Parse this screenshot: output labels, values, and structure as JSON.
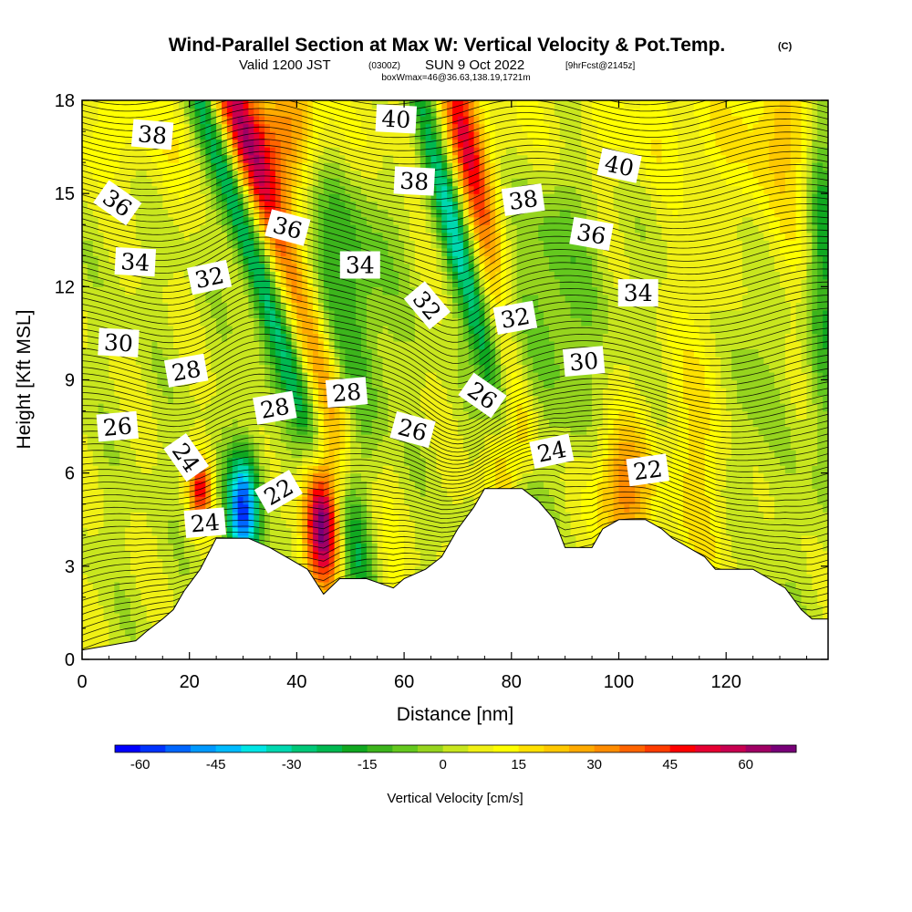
{
  "title": {
    "main": "Wind-Parallel Section at Max W: Vertical Velocity & Pot.Temp.",
    "units": "(C)",
    "valid_prefix": "Valid 1200 JST",
    "valid_utc": "(0300Z)",
    "valid_date": "SUN 9 Oct 2022",
    "forecast": "[9hrFcst@2145z]",
    "box_info": "boxWmax=46@36.63,138.19,1721m"
  },
  "chart_data": {
    "type": "heatmap",
    "xlabel": "Distance [nm]",
    "ylabel": "Height [Kft MSL]",
    "xlim": [
      0,
      139
    ],
    "ylim": [
      0,
      18
    ],
    "x_ticks": [
      0,
      20,
      40,
      60,
      80,
      100,
      120
    ],
    "y_ticks": [
      0,
      3,
      6,
      9,
      12,
      15,
      18
    ],
    "colorbar": {
      "label": "Vertical Velocity [cm/s]",
      "ticks": [
        -60,
        -45,
        -30,
        -15,
        0,
        15,
        30,
        45,
        60
      ],
      "min": -65,
      "max": 70,
      "step": 5,
      "colors": [
        "#0000ff",
        "#0033ff",
        "#0066ff",
        "#0099ff",
        "#00bbff",
        "#00e5e5",
        "#00d8b0",
        "#00c878",
        "#00b850",
        "#10a820",
        "#3cb41c",
        "#64c81e",
        "#96d41e",
        "#c8e61e",
        "#f0f014",
        "#ffff00",
        "#ffe000",
        "#ffc800",
        "#ffaa00",
        "#ff8c00",
        "#ff6400",
        "#ff3c00",
        "#ff0000",
        "#e60032",
        "#c80050",
        "#a00064",
        "#780078"
      ]
    },
    "vertical_velocity_features": [
      {
        "x": 33,
        "y": 15.5,
        "w": 45,
        "sigma_x": 2.8,
        "sigma_y": 7,
        "tilt": -1.9
      },
      {
        "x": 71,
        "y": 17,
        "w": 40,
        "sigma_x": 2.2,
        "sigma_y": 4,
        "tilt": -1.2
      },
      {
        "x": 22,
        "y": 5.5,
        "w": 42,
        "sigma_x": 1.5,
        "sigma_y": 0.8,
        "tilt": 0
      },
      {
        "x": 45,
        "y": 4.5,
        "w": 68,
        "sigma_x": 2.5,
        "sigma_y": 1.6,
        "tilt": 0
      },
      {
        "x": 80,
        "y": 6.7,
        "w": 28,
        "sigma_x": 3,
        "sigma_y": 1.4,
        "tilt": 0
      },
      {
        "x": 101,
        "y": 5.5,
        "w": 30,
        "sigma_x": 4,
        "sigma_y": 1.5,
        "tilt": 0
      },
      {
        "x": 38,
        "y": 17,
        "w": 22,
        "sigma_x": 4,
        "sigma_y": 1.5,
        "tilt": 0
      },
      {
        "x": 116,
        "y": 7,
        "w": 14,
        "sigma_x": 4,
        "sigma_y": 4,
        "tilt": 0
      },
      {
        "x": 130,
        "y": 16,
        "w": 10,
        "sigma_x": 5,
        "sigma_y": 3,
        "tilt": 0
      },
      {
        "x": 28,
        "y": 15,
        "w": -35,
        "sigma_x": 2.2,
        "sigma_y": 7,
        "tilt": -1.9
      },
      {
        "x": 66,
        "y": 16,
        "w": -36,
        "sigma_x": 2,
        "sigma_y": 8,
        "tilt": -1.5
      },
      {
        "x": 30,
        "y": 4.8,
        "w": -58,
        "sigma_x": 2.2,
        "sigma_y": 1.3,
        "tilt": 0
      },
      {
        "x": 51,
        "y": 5,
        "w": -22,
        "sigma_x": 3,
        "sigma_y": 3,
        "tilt": 0
      },
      {
        "x": 47,
        "y": 12.5,
        "w": -18,
        "sigma_x": 7,
        "sigma_y": 3,
        "tilt": 0
      },
      {
        "x": 88,
        "y": 12,
        "w": -12,
        "sigma_x": 6,
        "sigma_y": 4,
        "tilt": 0
      },
      {
        "x": 138,
        "y": 14,
        "w": -22,
        "sigma_x": 2,
        "sigma_y": 5,
        "tilt": 0
      },
      {
        "x": 123,
        "y": 9,
        "w": -9,
        "sigma_x": 4,
        "sigma_y": 3,
        "tilt": 0
      }
    ],
    "terrain": [
      [
        0,
        0.3
      ],
      [
        10,
        0.6
      ],
      [
        12,
        0.9
      ],
      [
        15,
        1.3
      ],
      [
        17,
        1.6
      ],
      [
        19,
        2.2
      ],
      [
        22,
        2.9
      ],
      [
        25,
        3.9
      ],
      [
        31,
        3.9
      ],
      [
        35,
        3.6
      ],
      [
        38,
        3.3
      ],
      [
        42,
        2.9
      ],
      [
        45,
        2.1
      ],
      [
        48,
        2.6
      ],
      [
        53,
        2.6
      ],
      [
        58,
        2.3
      ],
      [
        60,
        2.6
      ],
      [
        64,
        2.9
      ],
      [
        67,
        3.3
      ],
      [
        70,
        4.2
      ],
      [
        73,
        4.9
      ],
      [
        75,
        5.5
      ],
      [
        82,
        5.5
      ],
      [
        85,
        5.1
      ],
      [
        88,
        4.5
      ],
      [
        90,
        3.6
      ],
      [
        95,
        3.6
      ],
      [
        97,
        4.2
      ],
      [
        100,
        4.5
      ],
      [
        105,
        4.5
      ],
      [
        108,
        4.2
      ],
      [
        110,
        3.9
      ],
      [
        113,
        3.6
      ],
      [
        116,
        3.3
      ],
      [
        118,
        2.9
      ],
      [
        125,
        2.9
      ],
      [
        128,
        2.6
      ],
      [
        131,
        2.3
      ],
      [
        134,
        1.6
      ],
      [
        136,
        1.3
      ],
      [
        139,
        1.3
      ]
    ],
    "theta_contour_labels": [
      {
        "text": "38",
        "x": 13.1,
        "y": 16.9,
        "angle": 5
      },
      {
        "text": "40",
        "x": 58.5,
        "y": 17.4,
        "angle": 3
      },
      {
        "text": "40",
        "x": 100.1,
        "y": 15.9,
        "angle": 12
      },
      {
        "text": "36",
        "x": 6.6,
        "y": 14.7,
        "angle": 35
      },
      {
        "text": "38",
        "x": 61.9,
        "y": 15.4,
        "angle": 3
      },
      {
        "text": "38",
        "x": 82.2,
        "y": 14.8,
        "angle": -8
      },
      {
        "text": "36",
        "x": 38.3,
        "y": 13.9,
        "angle": 15
      },
      {
        "text": "36",
        "x": 94.9,
        "y": 13.7,
        "angle": 10
      },
      {
        "text": "34",
        "x": 9.9,
        "y": 12.8,
        "angle": 3
      },
      {
        "text": "32",
        "x": 23.7,
        "y": 12.3,
        "angle": -12
      },
      {
        "text": "34",
        "x": 51.8,
        "y": 12.7,
        "angle": 0
      },
      {
        "text": "34",
        "x": 103.6,
        "y": 11.8,
        "angle": 0
      },
      {
        "text": "32",
        "x": 64.3,
        "y": 11.4,
        "angle": 50
      },
      {
        "text": "32",
        "x": 80.7,
        "y": 11.0,
        "angle": -10
      },
      {
        "text": "30",
        "x": 6.8,
        "y": 10.2,
        "angle": 3
      },
      {
        "text": "30",
        "x": 93.5,
        "y": 9.6,
        "angle": -5
      },
      {
        "text": "28",
        "x": 19.4,
        "y": 9.3,
        "angle": -10
      },
      {
        "text": "28",
        "x": 35.9,
        "y": 8.1,
        "angle": -10
      },
      {
        "text": "28",
        "x": 49.3,
        "y": 8.6,
        "angle": -5
      },
      {
        "text": "26",
        "x": 74.6,
        "y": 8.5,
        "angle": 35
      },
      {
        "text": "26",
        "x": 6.6,
        "y": 7.5,
        "angle": -5
      },
      {
        "text": "26",
        "x": 61.6,
        "y": 7.4,
        "angle": 15
      },
      {
        "text": "24",
        "x": 19.4,
        "y": 6.5,
        "angle": 55
      },
      {
        "text": "24",
        "x": 87.5,
        "y": 6.7,
        "angle": -12
      },
      {
        "text": "22",
        "x": 36.6,
        "y": 5.4,
        "angle": -30
      },
      {
        "text": "22",
        "x": 105.4,
        "y": 6.1,
        "angle": -8
      },
      {
        "text": "24",
        "x": 22.9,
        "y": 4.4,
        "angle": -5
      }
    ]
  }
}
